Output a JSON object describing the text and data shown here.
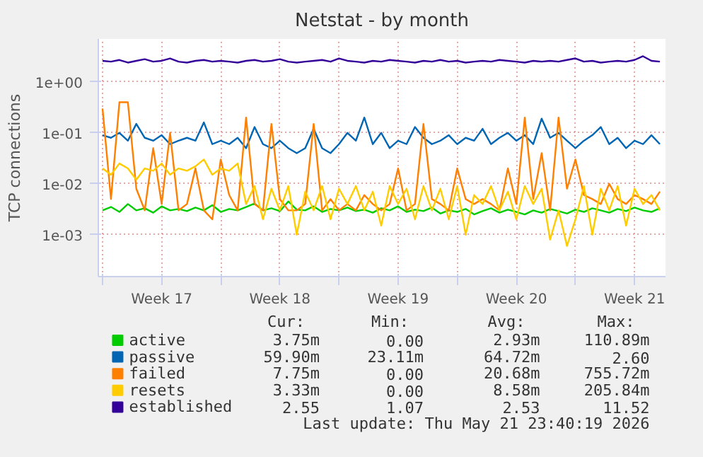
{
  "chart_data": {
    "type": "line",
    "title": "Netstat - by month",
    "ylabel": "TCP connections",
    "x": [
      "2026-04-20T00:00",
      "2026-04-20T12:00",
      "2026-04-21T00:00",
      "2026-04-21T12:00",
      "2026-04-22T00:00",
      "2026-04-22T12:00",
      "2026-04-23T00:00",
      "2026-04-23T12:00",
      "2026-04-24T00:00",
      "2026-04-24T12:00",
      "2026-04-25T00:00",
      "2026-04-25T12:00",
      "2026-04-26T00:00",
      "2026-04-26T12:00",
      "2026-04-27T00:00",
      "2026-04-27T12:00",
      "2026-04-28T00:00",
      "2026-04-28T12:00",
      "2026-04-29T00:00",
      "2026-04-29T12:00",
      "2026-04-30T00:00",
      "2026-04-30T12:00",
      "2026-05-01T00:00",
      "2026-05-01T12:00",
      "2026-05-02T00:00",
      "2026-05-02T12:00",
      "2026-05-03T00:00",
      "2026-05-03T12:00",
      "2026-05-04T00:00",
      "2026-05-04T12:00",
      "2026-05-05T00:00",
      "2026-05-05T12:00",
      "2026-05-06T00:00",
      "2026-05-06T12:00",
      "2026-05-07T00:00",
      "2026-05-07T12:00",
      "2026-05-08T00:00",
      "2026-05-08T12:00",
      "2026-05-09T00:00",
      "2026-05-09T12:00",
      "2026-05-10T00:00",
      "2026-05-10T12:00",
      "2026-05-11T00:00",
      "2026-05-11T12:00",
      "2026-05-12T00:00",
      "2026-05-12T12:00",
      "2026-05-13T00:00",
      "2026-05-13T12:00",
      "2026-05-14T00:00",
      "2026-05-14T12:00",
      "2026-05-15T00:00",
      "2026-05-15T12:00",
      "2026-05-16T00:00",
      "2026-05-16T12:00",
      "2026-05-17T00:00",
      "2026-05-17T12:00",
      "2026-05-18T00:00",
      "2026-05-18T12:00",
      "2026-05-19T00:00",
      "2026-05-19T12:00",
      "2026-05-20T00:00",
      "2026-05-20T12:00",
      "2026-05-21T00:00",
      "2026-05-21T12:00",
      "2026-05-22T00:00",
      "2026-05-22T12:00",
      "2026-05-23T00:00"
    ],
    "series": [
      {
        "name": "active",
        "color": "#00cc00",
        "values": [
          0.003,
          0.0035,
          0.0028,
          0.004,
          0.003,
          0.0033,
          0.0027,
          0.0036,
          0.003,
          0.0032,
          0.0029,
          0.0034,
          0.003,
          0.0038,
          0.0028,
          0.0032,
          0.003,
          0.0035,
          0.0041,
          0.003,
          0.0033,
          0.0029,
          0.0045,
          0.0031,
          0.003,
          0.0036,
          0.0028,
          0.0032,
          0.003,
          0.0034,
          0.0029,
          0.0031,
          0.0027,
          0.0033,
          0.003,
          0.0036,
          0.0028,
          0.0031,
          0.0029,
          0.0034,
          0.0026,
          0.003,
          0.0028,
          0.0032,
          0.0025,
          0.0029,
          0.0033,
          0.0027,
          0.0031,
          0.0028,
          0.0025,
          0.003,
          0.0027,
          0.0032,
          0.0029,
          0.0026,
          0.0031,
          0.0028,
          0.0033,
          0.003,
          0.0027,
          0.0032,
          0.0029,
          0.0034,
          0.003,
          0.0028,
          0.0033
        ]
      },
      {
        "name": "passive",
        "color": "#0066b3",
        "values": [
          0.09,
          0.08,
          0.1,
          0.07,
          0.15,
          0.08,
          0.07,
          0.09,
          0.06,
          0.07,
          0.08,
          0.07,
          0.16,
          0.06,
          0.07,
          0.06,
          0.08,
          0.05,
          0.13,
          0.06,
          0.05,
          0.07,
          0.05,
          0.04,
          0.05,
          0.12,
          0.05,
          0.04,
          0.06,
          0.1,
          0.07,
          0.2,
          0.06,
          0.1,
          0.05,
          0.07,
          0.06,
          0.13,
          0.08,
          0.06,
          0.07,
          0.09,
          0.06,
          0.08,
          0.07,
          0.12,
          0.06,
          0.08,
          0.1,
          0.07,
          0.09,
          0.06,
          0.19,
          0.08,
          0.1,
          0.07,
          0.05,
          0.07,
          0.09,
          0.13,
          0.06,
          0.08,
          0.05,
          0.07,
          0.06,
          0.09,
          0.06
        ]
      },
      {
        "name": "failed",
        "color": "#ff8000",
        "values": [
          0.3,
          0.005,
          0.4,
          0.4,
          0.008,
          0.003,
          0.05,
          0.004,
          0.1,
          0.003,
          0.004,
          0.02,
          0.003,
          0.002,
          0.03,
          0.006,
          0.003,
          0.2,
          0.004,
          0.003,
          0.15,
          0.005,
          0.003,
          0.003,
          0.004,
          0.15,
          0.003,
          0.005,
          0.003,
          0.004,
          0.003,
          0.006,
          0.004,
          0.003,
          0.004,
          0.02,
          0.003,
          0.004,
          0.15,
          0.005,
          0.004,
          0.003,
          0.02,
          0.005,
          0.004,
          0.005,
          0.004,
          0.003,
          0.02,
          0.004,
          0.2,
          0.005,
          0.04,
          0.003,
          0.2,
          0.008,
          0.03,
          0.006,
          0.005,
          0.004,
          0.01,
          0.005,
          0.004,
          0.006,
          0.005,
          0.004,
          0.007
        ]
      },
      {
        "name": "resets",
        "color": "#ffcc00",
        "values": [
          0.02,
          0.015,
          0.025,
          0.02,
          0.012,
          0.02,
          0.018,
          0.025,
          0.015,
          0.02,
          0.018,
          0.022,
          0.03,
          0.015,
          0.02,
          0.018,
          0.025,
          0.004,
          0.009,
          0.002,
          0.008,
          0.003,
          0.009,
          0.001,
          0.007,
          0.003,
          0.009,
          0.002,
          0.008,
          0.004,
          0.009,
          0.003,
          0.007,
          0.0015,
          0.009,
          0.004,
          0.008,
          0.002,
          0.009,
          0.003,
          0.008,
          0.002,
          0.009,
          0.001,
          0.006,
          0.004,
          0.009,
          0.003,
          0.007,
          0.002,
          0.009,
          0.004,
          0.008,
          0.0008,
          0.003,
          0.0006,
          0.002,
          0.009,
          0.001,
          0.008,
          0.003,
          0.009,
          0.0015,
          0.008,
          0.004,
          0.006,
          0.003
        ]
      },
      {
        "name": "established",
        "color": "#330099",
        "values": [
          2.6,
          2.5,
          2.7,
          2.4,
          2.6,
          2.8,
          2.5,
          2.6,
          2.9,
          2.5,
          2.4,
          2.6,
          2.7,
          2.5,
          2.6,
          2.5,
          2.4,
          2.6,
          2.7,
          2.5,
          2.6,
          2.8,
          2.5,
          2.4,
          2.5,
          2.6,
          2.7,
          2.5,
          2.9,
          2.6,
          2.5,
          2.4,
          2.6,
          2.5,
          2.7,
          2.6,
          2.5,
          2.4,
          2.6,
          2.5,
          2.7,
          2.5,
          2.6,
          2.4,
          2.5,
          2.6,
          2.5,
          2.7,
          2.6,
          2.5,
          2.4,
          2.6,
          2.5,
          2.6,
          2.5,
          2.7,
          2.9,
          2.5,
          2.6,
          2.4,
          2.5,
          2.6,
          2.5,
          2.7,
          3.2,
          2.6,
          2.5
        ]
      }
    ],
    "xlim": [
      "2026-04-19T18:00",
      "2026-05-23T08:00"
    ],
    "xticks": [
      {
        "value": "2026-04-20",
        "label": null
      },
      {
        "value": "2026-04-23T12:00",
        "label": "Week 17"
      },
      {
        "value": "2026-04-27",
        "label": null
      },
      {
        "value": "2026-04-30T12:00",
        "label": "Week 18"
      },
      {
        "value": "2026-05-04",
        "label": null
      },
      {
        "value": "2026-05-07T12:00",
        "label": "Week 19"
      },
      {
        "value": "2026-05-11",
        "label": null
      },
      {
        "value": "2026-05-14T12:00",
        "label": "Week 20"
      },
      {
        "value": "2026-05-18",
        "label": null
      },
      {
        "value": "2026-05-21T12:00",
        "label": "Week 21"
      }
    ],
    "ylim": [
      0.00015,
      7
    ],
    "yticks": [
      {
        "value": 0.001,
        "label": "1e-03"
      },
      {
        "value": 0.01,
        "label": "1e-02"
      },
      {
        "value": 0.1,
        "label": "1e-01"
      },
      {
        "value": 1,
        "label": "1e+00"
      }
    ],
    "log": true,
    "grid": true,
    "legend": "bottom",
    "annotations": [
      "Cur:",
      "Min:",
      "Avg:",
      "Max:",
      "3.75m",
      "0.00",
      "2.93m",
      "110.89m",
      "59.90m",
      "23.11m",
      "64.72m",
      "2.60",
      "7.75m",
      "0.00",
      "20.68m",
      "755.72m",
      "3.33m",
      "0.00",
      "8.58m",
      "205.84m",
      "2.55",
      "1.07",
      "2.53",
      "11.52",
      "Last update: Thu May 21 23:40:19 2026"
    ]
  }
}
